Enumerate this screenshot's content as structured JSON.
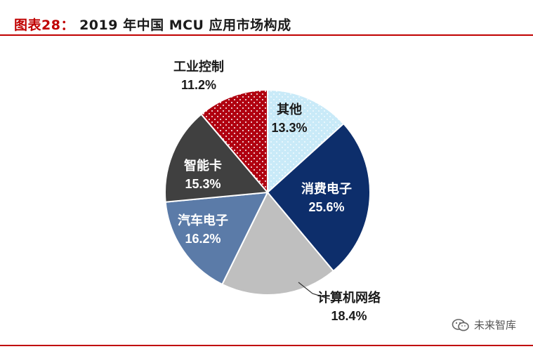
{
  "figure": {
    "label": "图表28：",
    "title": "2019 年中国 MCU 应用市场构成"
  },
  "watermark": {
    "text": "未来智库",
    "icon": "wechat-icon"
  },
  "chart_data": {
    "type": "pie",
    "title": "",
    "start_angle_deg": 0,
    "direction": "clockwise",
    "slices": [
      {
        "label": "其他",
        "value": 13.3,
        "value_label": "13.3%",
        "color": "#c9eaf8",
        "pattern": "dots"
      },
      {
        "label": "消费电子",
        "value": 25.6,
        "value_label": "25.6%",
        "color": "#0d2e6b",
        "pattern": "none"
      },
      {
        "label": "计算机网络",
        "value": 18.4,
        "value_label": "18.4%",
        "color": "#bfbfbf",
        "pattern": "none"
      },
      {
        "label": "汽车电子",
        "value": 16.2,
        "value_label": "16.2%",
        "color": "#5b7ba8",
        "pattern": "none"
      },
      {
        "label": "智能卡",
        "value": 15.3,
        "value_label": "15.3%",
        "color": "#404040",
        "pattern": "none"
      },
      {
        "label": "工业控制",
        "value": 11.2,
        "value_label": "11.2%",
        "color": "#b00010",
        "pattern": "dots"
      }
    ]
  }
}
